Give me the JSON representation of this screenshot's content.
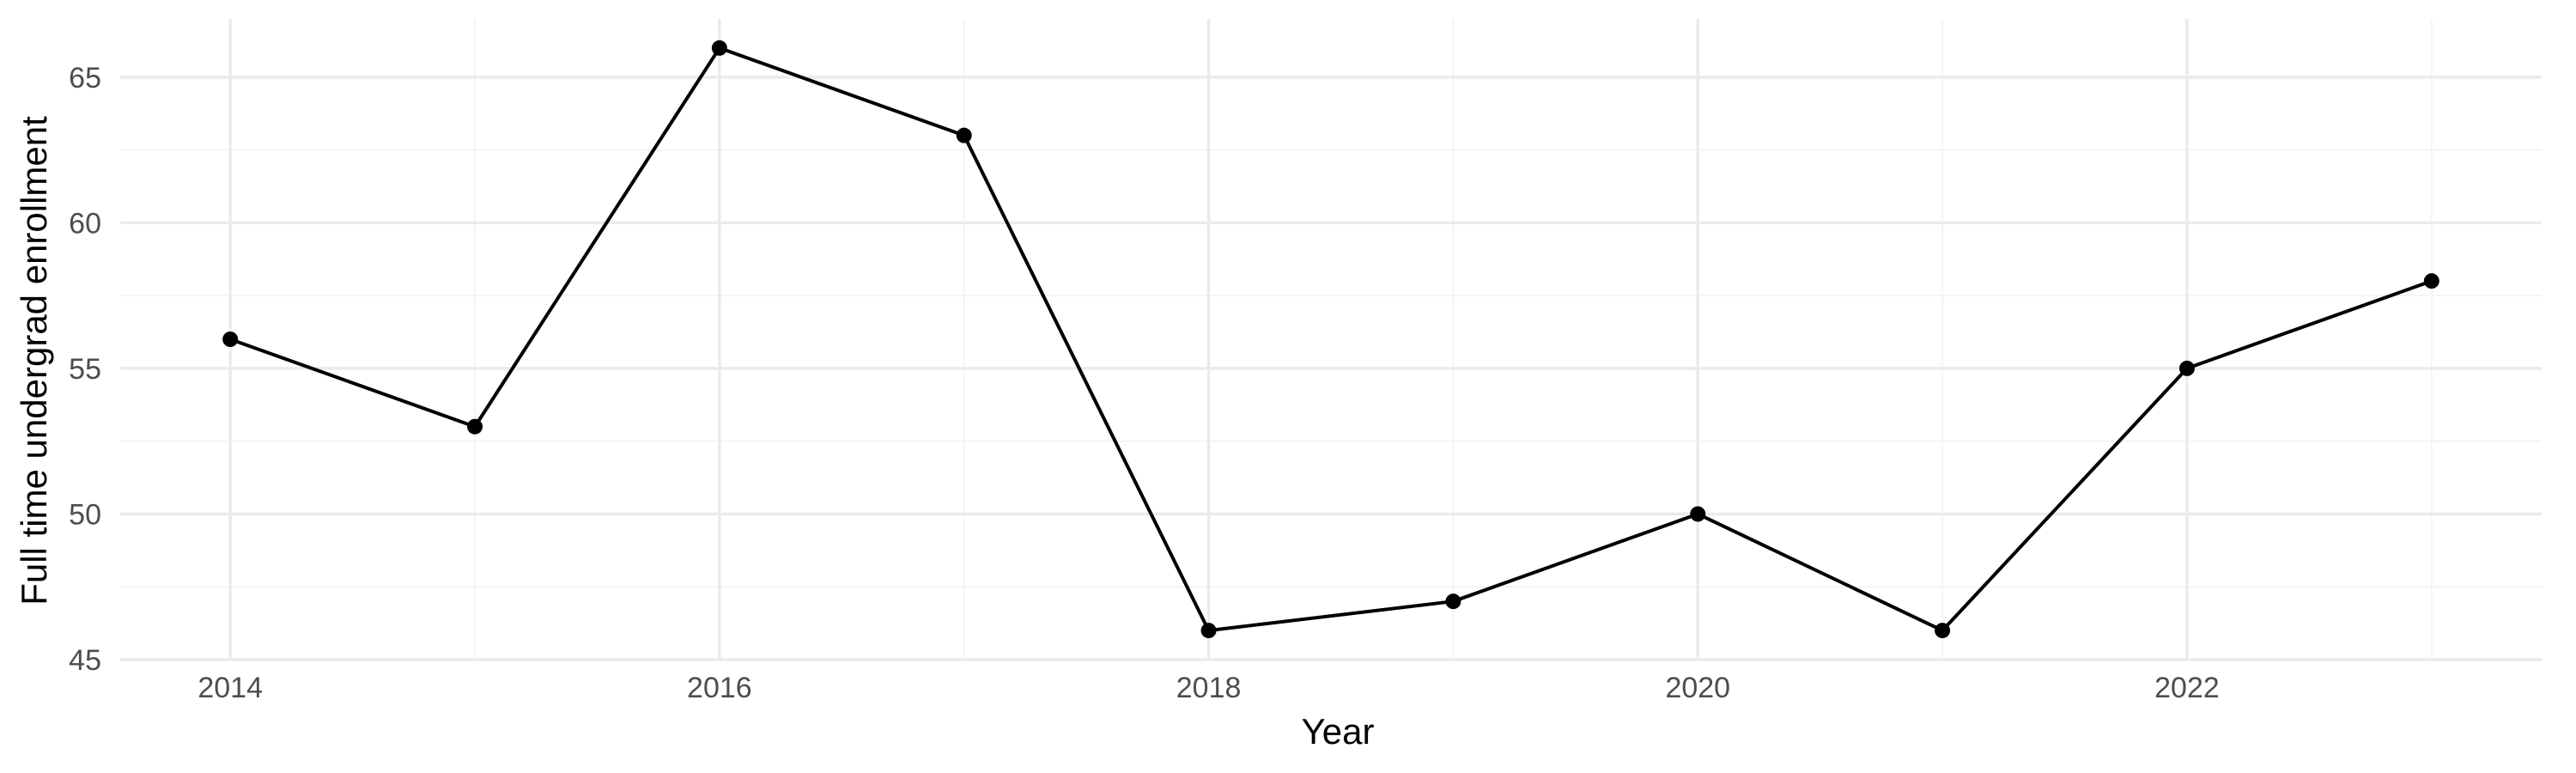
{
  "chart_data": {
    "type": "line",
    "title": "",
    "xlabel": "Year",
    "ylabel": "Full time undergrad enrollment",
    "x": [
      2014,
      2015,
      2016,
      2017,
      2018,
      2019,
      2020,
      2021,
      2022,
      2023
    ],
    "series": [
      {
        "values": [
          56,
          53,
          66,
          63,
          46,
          47,
          50,
          46,
          55,
          58
        ],
        "color": "#000000"
      }
    ],
    "xlim": [
      2013.55,
      2023.45
    ],
    "ylim": [
      45,
      67
    ],
    "x_ticks": [
      2014,
      2016,
      2018,
      2020,
      2022
    ],
    "x_tick_labels": [
      "2014",
      "2016",
      "2018",
      "2020",
      "2022"
    ],
    "y_ticks": [
      45,
      50,
      55,
      60,
      65
    ],
    "y_tick_labels": [
      "45",
      "50",
      "55",
      "60",
      "65"
    ],
    "grid": true,
    "legend": "none"
  }
}
